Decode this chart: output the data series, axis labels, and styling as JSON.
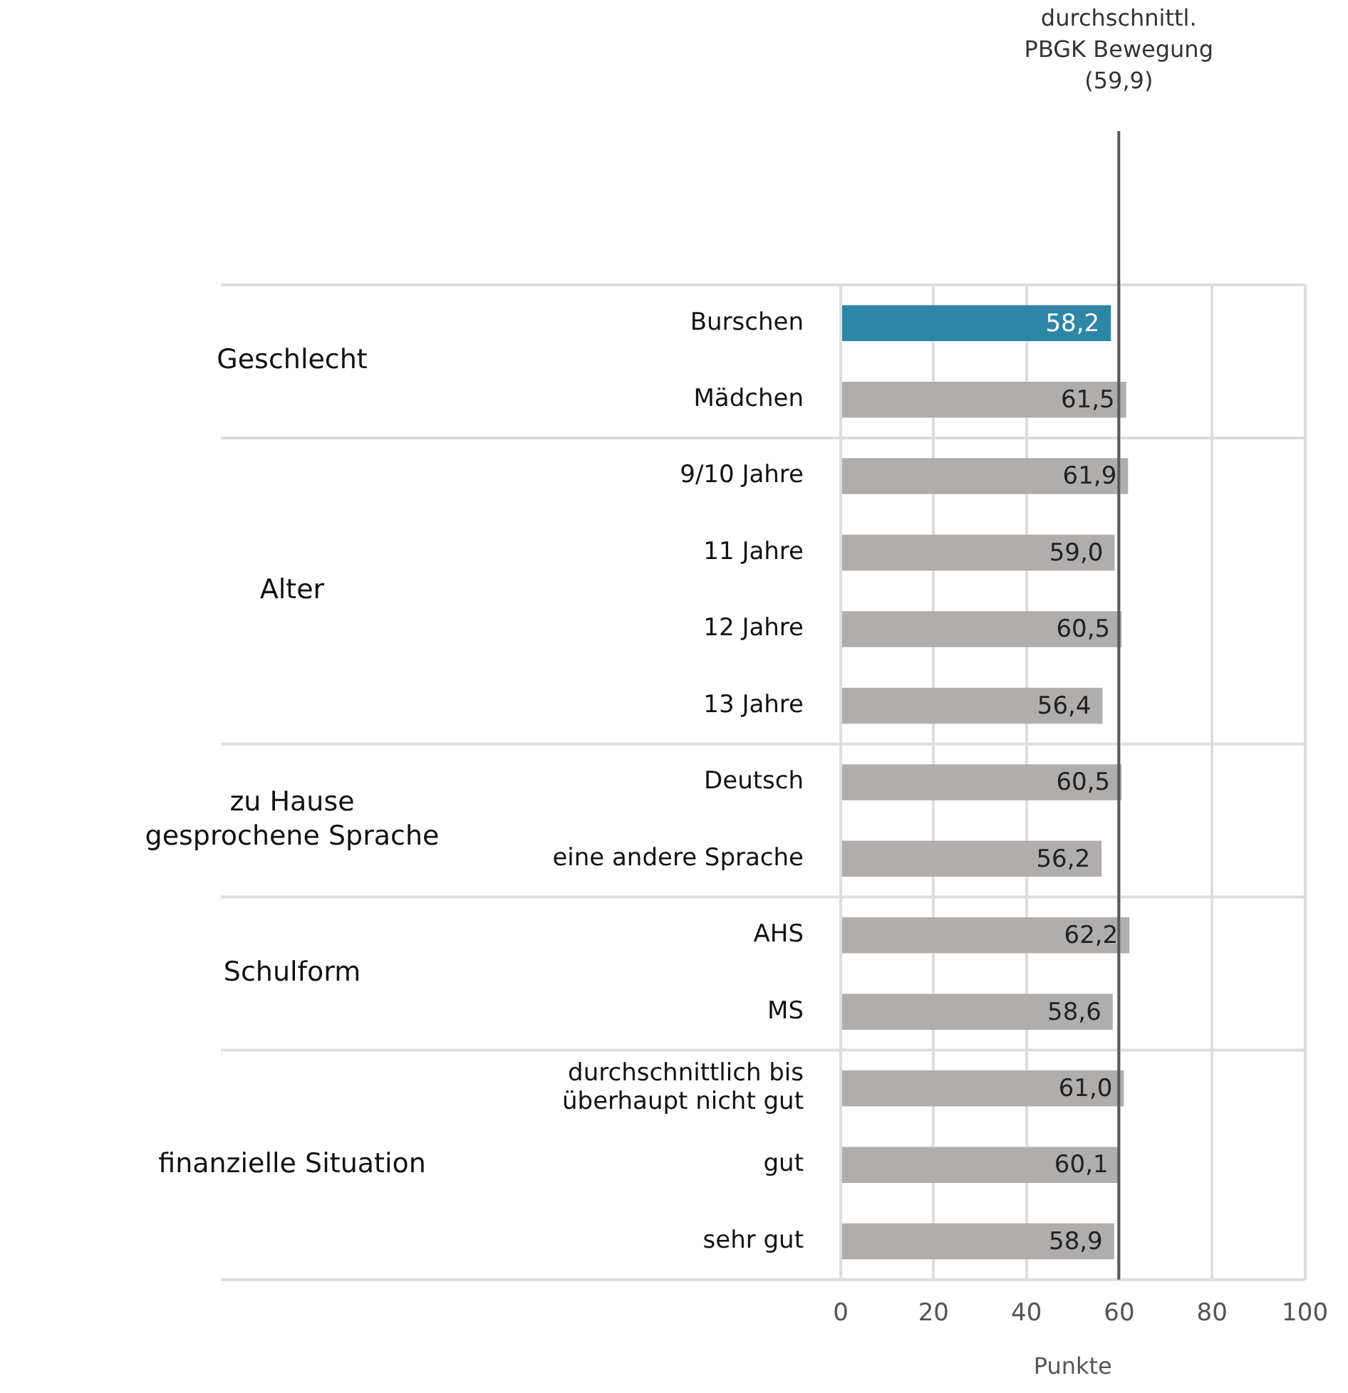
{
  "chart_data": {
    "type": "bar",
    "orientation": "horizontal",
    "xlabel": "Punkte",
    "categories": [
      "Burschen",
      "Mädchen",
      "9/10 Jahre",
      "11 Jahre",
      "12 Jahre",
      "13 Jahre",
      "Deutsch",
      "eine andere Sprache",
      "AHS",
      "MS",
      "durchschnittlich bis\nüberhaupt nicht gut",
      "gut",
      "sehr gut"
    ],
    "values": [
      58.2,
      61.5,
      61.9,
      59.0,
      60.5,
      56.4,
      60.5,
      56.2,
      62.2,
      58.6,
      61.0,
      60.1,
      58.9
    ],
    "value_labels": [
      "58,2",
      "61,5",
      "61,9",
      "59,0",
      "60,5",
      "56,4",
      "60,5",
      "56,2",
      "62,2",
      "58,6",
      "61,0",
      "60,1",
      "58,9"
    ],
    "colors": [
      "#2e86a6",
      "#b0adad",
      "#b0adad",
      "#b0adad",
      "#b0adad",
      "#b0adad",
      "#b0adad",
      "#b0adad",
      "#b0adad",
      "#b0adad",
      "#b0adad",
      "#b0adad",
      "#b0adad"
    ],
    "xlim": [
      0,
      100
    ],
    "xticks": [
      0,
      20,
      40,
      60,
      80,
      100
    ],
    "grid": "x",
    "legend": false,
    "ref_lines": [
      {
        "axis": "x",
        "value": 59.9,
        "label": "durchschnittl.\nPBGK Bewegung\n(59,9)",
        "color": "#595959"
      }
    ],
    "annotations": [
      "Geschlecht",
      "Alter",
      "zu Hause\ngesprochene Sprache",
      "Schulform",
      "finanzielle Situation"
    ]
  }
}
